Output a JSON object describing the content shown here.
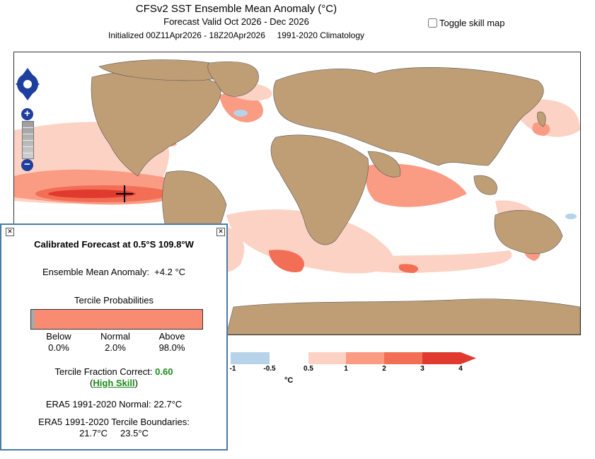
{
  "header": {
    "title": "CFSv2 SST Ensemble Mean Anomaly (°C)",
    "valid": "Forecast Valid Oct 2026 - Dec 2026",
    "init": "Initialized 00Z11Apr2026 - 18Z20Apr2026     1991-2020 Climatology"
  },
  "skill_toggle": {
    "label": "Toggle skill map",
    "checked": false
  },
  "colors": {
    "land": "#bf9e76",
    "ocean": "#ffffff",
    "popup_border": "#4a7aa8",
    "nav_blue": "#1f3f9e",
    "high_skill": "#1a8a1a"
  },
  "nav": {
    "pan_icon": "pan-arrows-icon",
    "zoom_in_label": "+",
    "zoom_out_label": "−"
  },
  "colorbar": {
    "labels": [
      "-1",
      "-0.5",
      "0.5",
      "1",
      "2",
      "3",
      "4"
    ],
    "unit": "°C",
    "colors": [
      "#b6d3ea",
      "#ffffff",
      "#fcd2c4",
      "#fa9b84",
      "#f26e54",
      "#e03a2e"
    ]
  },
  "popup": {
    "title": "Calibrated Forecast at 0.5°S 109.8°W",
    "anomaly": "Ensemble Mean Anomaly:  +4.2 °C",
    "tercile_heading": "Tercile Probabilities",
    "terciles": [
      {
        "name": "Below",
        "value": "0.0%",
        "fraction": 0.0,
        "color": "#8fb4d6"
      },
      {
        "name": "Normal",
        "value": "2.0%",
        "fraction": 0.02,
        "color": "#a9a9a9"
      },
      {
        "name": "Above",
        "value": "98.0%",
        "fraction": 0.98,
        "color": "#fa8b73"
      }
    ],
    "tfc_label": "Tercile Fraction Correct:",
    "tfc_value": "0.60",
    "skill_open": "(",
    "skill_text": "High Skill",
    "skill_close": ")",
    "normal": "ERA5 1991-2020 Normal: 22.7°C",
    "boundaries_label": "ERA5 1991-2020 Tercile Boundaries:",
    "boundaries": "21.7°C     23.5°C"
  }
}
